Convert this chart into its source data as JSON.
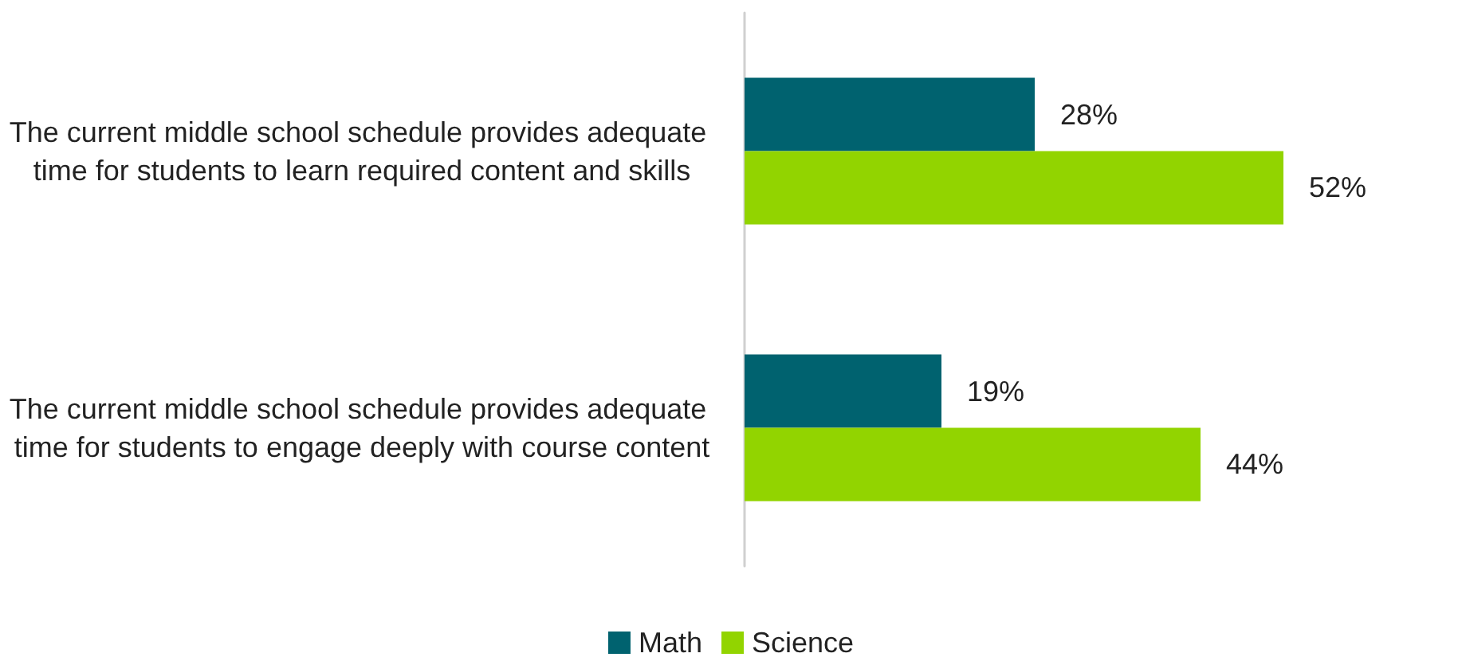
{
  "chart_data": {
    "type": "bar",
    "orientation": "horizontal",
    "categories": [
      "The current middle school schedule provides adequate time for students to learn required content and skills",
      "The current middle school schedule provides adequate time for students to engage deeply with course content"
    ],
    "series": [
      {
        "name": "Math",
        "color": "#00626f",
        "values": [
          28,
          19
        ],
        "value_labels": [
          "28%",
          "19%"
        ]
      },
      {
        "name": "Science",
        "color": "#92d400",
        "values": [
          52,
          44
        ],
        "value_labels": [
          "52%",
          "44%"
        ]
      }
    ],
    "legend": "bottom",
    "grid": false
  }
}
